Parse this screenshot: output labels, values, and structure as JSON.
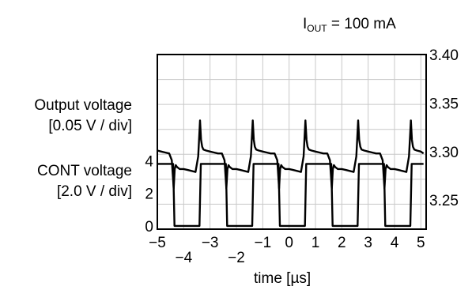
{
  "chart_data": {
    "type": "line",
    "annotation": {
      "symbol": "I",
      "subscript": "OUT",
      "rest": " = 100 mA"
    },
    "left_labels": {
      "output_line1": "Output voltage",
      "output_line2": "[0.05 V / div]",
      "cont_line1": "CONT voltage",
      "cont_line2": "[2.0 V / div]"
    },
    "xlabel": "time [µs]",
    "xlim": [
      -5,
      5.2
    ],
    "x_ticks": [
      "−5",
      "−4",
      "−3",
      "−2",
      "−1",
      "0",
      "1",
      "2",
      "3",
      "4",
      "5"
    ],
    "x_tick_values": [
      -5,
      -4,
      -3,
      -2,
      -1,
      0,
      1,
      2,
      3,
      4,
      5
    ],
    "y_right": {
      "ticks": [
        "3.40",
        "3.35",
        "3.30",
        "3.25"
      ],
      "values": [
        3.4,
        3.35,
        3.3,
        3.25
      ],
      "unit": "V",
      "range_at_plot_top_bottom": [
        3.4,
        3.22
      ]
    },
    "y_left": {
      "ticks": [
        "4",
        "2",
        "0"
      ],
      "values": [
        4,
        2,
        0
      ],
      "unit": "V",
      "range_at_plot_top_bottom": [
        10.5,
        -0.2
      ]
    },
    "grid": true,
    "series": [
      {
        "values_label": "Output voltage",
        "axis": "right",
        "color": "#000000",
        "x": [
          -5.0,
          -4.85,
          -4.7,
          -4.55,
          -4.45,
          -4.38,
          -4.34,
          -4.3,
          -4.25,
          -4.15,
          -4.0,
          -3.85,
          -3.7,
          -3.55,
          -3.45,
          -3.38,
          -3.34,
          -3.3,
          -3.25,
          -3.15,
          -3.0,
          -2.85,
          -2.7,
          -2.55,
          -2.45,
          -2.38,
          -2.34,
          -2.3,
          -2.25,
          -2.15,
          -2.0,
          -1.85,
          -1.7,
          -1.55,
          -1.45,
          -1.38,
          -1.34,
          -1.3,
          -1.25,
          -1.15,
          -1.0,
          -0.85,
          -0.7,
          -0.55,
          -0.45,
          -0.38,
          -0.34,
          -0.3,
          -0.25,
          -0.15,
          0.0,
          0.15,
          0.3,
          0.45,
          0.55,
          0.62,
          0.66,
          0.7,
          0.75,
          0.85,
          1.0,
          1.15,
          1.3,
          1.45,
          1.55,
          1.62,
          1.66,
          1.7,
          1.75,
          1.85,
          2.0,
          2.15,
          2.3,
          2.45,
          2.55,
          2.62,
          2.66,
          2.7,
          2.75,
          2.85,
          3.0,
          3.15,
          3.3,
          3.45,
          3.55,
          3.62,
          3.66,
          3.7,
          3.75,
          3.85,
          4.0,
          4.15,
          4.3,
          4.45,
          4.55,
          4.62,
          4.66,
          4.7,
          4.75,
          4.85,
          5.0,
          5.1
        ],
        "y": [
          3.301,
          3.3,
          3.299,
          3.298,
          3.291,
          3.262,
          3.282,
          3.286,
          3.284,
          3.282,
          3.282,
          3.281,
          3.28,
          3.279,
          3.295,
          3.332,
          3.312,
          3.305,
          3.302,
          3.301,
          3.3,
          3.299,
          3.298,
          3.298,
          3.291,
          3.262,
          3.282,
          3.286,
          3.284,
          3.282,
          3.282,
          3.281,
          3.28,
          3.279,
          3.295,
          3.332,
          3.312,
          3.305,
          3.302,
          3.301,
          3.3,
          3.299,
          3.298,
          3.298,
          3.291,
          3.262,
          3.282,
          3.286,
          3.284,
          3.282,
          3.282,
          3.281,
          3.28,
          3.279,
          3.295,
          3.332,
          3.312,
          3.305,
          3.302,
          3.301,
          3.3,
          3.299,
          3.298,
          3.298,
          3.291,
          3.262,
          3.282,
          3.286,
          3.284,
          3.282,
          3.282,
          3.281,
          3.28,
          3.279,
          3.295,
          3.332,
          3.312,
          3.305,
          3.302,
          3.301,
          3.3,
          3.299,
          3.298,
          3.298,
          3.291,
          3.262,
          3.282,
          3.286,
          3.284,
          3.282,
          3.282,
          3.281,
          3.28,
          3.279,
          3.295,
          3.332,
          3.312,
          3.305,
          3.302,
          3.301,
          3.3,
          3.298
        ]
      },
      {
        "values_label": "CONT voltage",
        "axis": "left",
        "color": "#000000",
        "x": [
          -5.0,
          -4.4,
          -4.35,
          -3.4,
          -3.35,
          -2.4,
          -2.35,
          -1.4,
          -1.35,
          -0.4,
          -0.35,
          0.6,
          0.65,
          1.6,
          1.65,
          2.6,
          2.65,
          3.6,
          3.65,
          4.6,
          4.65,
          5.1
        ],
        "y": [
          3.8,
          3.8,
          0,
          0,
          3.8,
          3.8,
          0,
          0,
          3.8,
          3.8,
          0,
          0,
          3.8,
          3.8,
          0,
          0,
          3.8,
          3.8,
          0,
          0,
          3.8,
          3.8
        ]
      }
    ]
  }
}
